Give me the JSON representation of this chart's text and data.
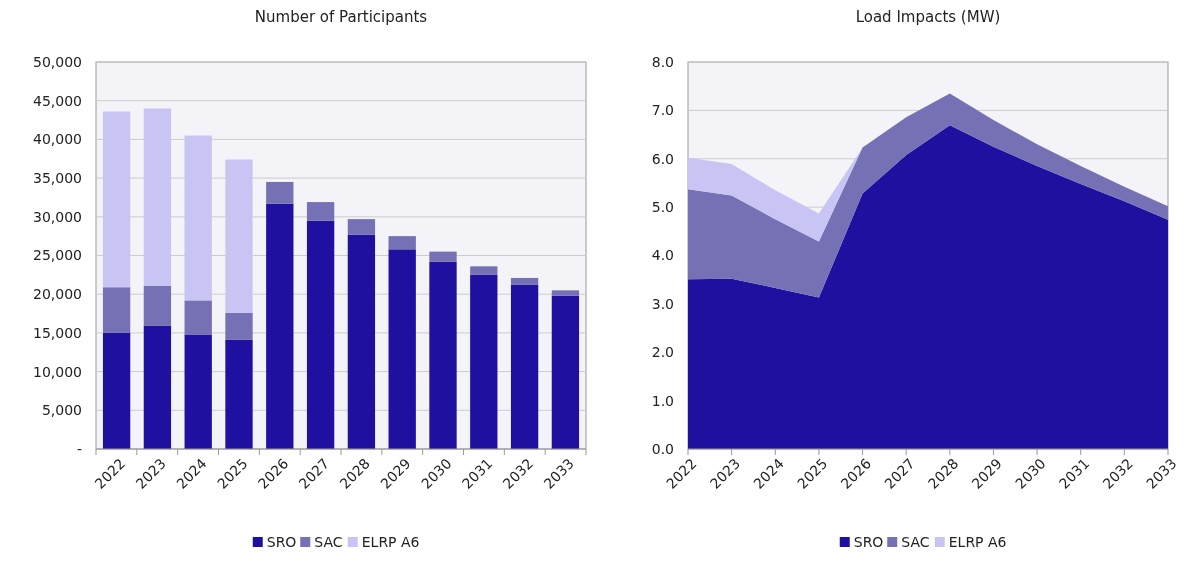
{
  "chart_data": [
    {
      "type": "bar",
      "title": "Number of Participants",
      "stacked": true,
      "categories": [
        "2022",
        "2023",
        "2024",
        "2025",
        "2026",
        "2027",
        "2028",
        "2029",
        "2030",
        "2031",
        "2032",
        "2033"
      ],
      "series": [
        {
          "name": "SRO",
          "color": "#2010a0",
          "values": [
            15000,
            15900,
            14800,
            14100,
            31700,
            29500,
            27700,
            25800,
            24200,
            22500,
            21200,
            19800
          ]
        },
        {
          "name": "SAC",
          "color": "#7670b4",
          "values": [
            5900,
            5200,
            4400,
            3500,
            2800,
            2400,
            2000,
            1700,
            1300,
            1100,
            900,
            700
          ]
        },
        {
          "name": "ELRP A6",
          "color": "#c8c4f4",
          "values": [
            22700,
            22900,
            21300,
            19800,
            0,
            0,
            0,
            0,
            0,
            0,
            0,
            0
          ]
        }
      ],
      "ylim": [
        0,
        50000
      ],
      "yticks": [
        {
          "value": 0,
          "label": "-"
        },
        {
          "value": 5000,
          "label": "5,000"
        },
        {
          "value": 10000,
          "label": "10,000"
        },
        {
          "value": 15000,
          "label": "15,000"
        },
        {
          "value": 20000,
          "label": "20,000"
        },
        {
          "value": 25000,
          "label": "25,000"
        },
        {
          "value": 30000,
          "label": "30,000"
        },
        {
          "value": 35000,
          "label": "35,000"
        },
        {
          "value": 40000,
          "label": "40,000"
        },
        {
          "value": 45000,
          "label": "45,000"
        },
        {
          "value": 50000,
          "label": "50,000"
        }
      ],
      "grid": "y",
      "legend": "bottom"
    },
    {
      "type": "area",
      "title": "Load Impacts (MW)",
      "stacked": true,
      "categories": [
        "2022",
        "2023",
        "2024",
        "2025",
        "2026",
        "2027",
        "2028",
        "2029",
        "2030",
        "2031",
        "2032",
        "2033"
      ],
      "series": [
        {
          "name": "SRO",
          "color": "#2010a0",
          "values": [
            3.51,
            3.52,
            3.33,
            3.13,
            5.28,
            6.08,
            6.69,
            6.25,
            5.85,
            5.48,
            5.12,
            4.74
          ]
        },
        {
          "name": "SAC",
          "color": "#7670b4",
          "values": [
            1.86,
            1.72,
            1.42,
            1.16,
            0.95,
            0.78,
            0.66,
            0.55,
            0.45,
            0.37,
            0.3,
            0.28
          ]
        },
        {
          "name": "ELRP A6",
          "color": "#c8c4f4",
          "values": [
            0.65,
            0.65,
            0.6,
            0.58,
            0,
            0,
            0,
            0,
            0,
            0,
            0,
            0
          ]
        }
      ],
      "ylim": [
        0,
        8
      ],
      "yticks": [
        {
          "value": 0,
          "label": "0.0"
        },
        {
          "value": 1,
          "label": "1.0"
        },
        {
          "value": 2,
          "label": "2.0"
        },
        {
          "value": 3,
          "label": "3.0"
        },
        {
          "value": 4,
          "label": "4.0"
        },
        {
          "value": 5,
          "label": "5.0"
        },
        {
          "value": 6,
          "label": "6.0"
        },
        {
          "value": 7,
          "label": "7.0"
        },
        {
          "value": 8,
          "label": "8.0"
        }
      ],
      "grid": "y",
      "legend": "bottom"
    }
  ]
}
